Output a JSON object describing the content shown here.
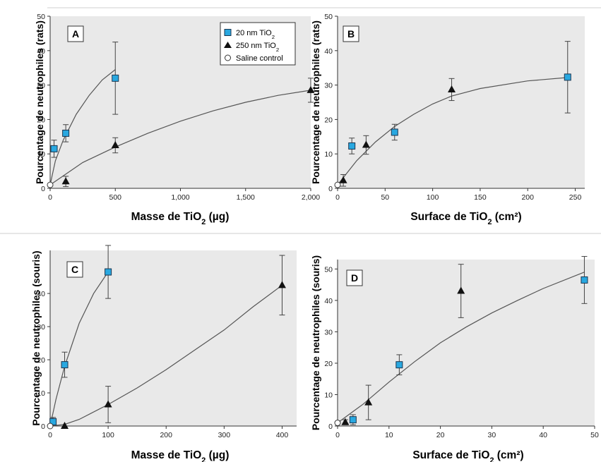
{
  "legend": {
    "items": [
      {
        "name": "20 nm TiO₂",
        "marker": "square",
        "color": "#29a8e0"
      },
      {
        "name": "250 nm TiO₂",
        "marker": "triangle",
        "color": "#111111"
      },
      {
        "name": "Saline control",
        "marker": "circle",
        "color": "#ffffff"
      }
    ]
  },
  "chart_data": [
    {
      "panel": "A",
      "type": "scatter",
      "xlabel": "Masse de TiO₂ (µg)",
      "ylabel": "Pourcentage de neutrophiles (rats)",
      "xlim": [
        0,
        2000
      ],
      "ylim": [
        0,
        50
      ],
      "xticks": [
        0,
        500,
        1000,
        1500,
        2000
      ],
      "xtick_labels": [
        "0",
        "500",
        "1,000",
        "1,500",
        "2,000"
      ],
      "yticks": [
        0,
        10,
        20,
        30,
        40,
        50
      ],
      "grid": false,
      "background": "#e9e9e9",
      "series": [
        {
          "name": "20 nm TiO₂",
          "marker": "square",
          "points": [
            {
              "x": 30,
              "y": 11.5,
              "err": 2.5
            },
            {
              "x": 120,
              "y": 16,
              "err": 2.5
            },
            {
              "x": 500,
              "y": 32,
              "err": 10.5
            }
          ],
          "fit": [
            [
              0,
              1
            ],
            [
              40,
              8
            ],
            [
              100,
              14
            ],
            [
              200,
              21.5
            ],
            [
              300,
              27
            ],
            [
              400,
              31.5
            ],
            [
              500,
              34.5
            ]
          ]
        },
        {
          "name": "250 nm TiO₂",
          "marker": "triangle",
          "points": [
            {
              "x": 120,
              "y": 2,
              "err": 1.5
            },
            {
              "x": 500,
              "y": 12.5,
              "err": 2.2
            },
            {
              "x": 2000,
              "y": 28.5,
              "err": 3.5
            }
          ],
          "fit": [
            [
              0,
              1
            ],
            [
              250,
              7.5
            ],
            [
              500,
              12
            ],
            [
              750,
              16
            ],
            [
              1000,
              19.5
            ],
            [
              1250,
              22.5
            ],
            [
              1500,
              25
            ],
            [
              1750,
              27
            ],
            [
              2000,
              28.5
            ]
          ]
        },
        {
          "name": "Saline control",
          "marker": "circle",
          "points": [
            {
              "x": 0,
              "y": 1
            }
          ]
        }
      ]
    },
    {
      "panel": "B",
      "type": "scatter",
      "xlabel": "Surface de TiO₂ (cm²)",
      "ylabel": "Pourcentage de neutrophiles (rats)",
      "xlim": [
        0,
        260
      ],
      "ylim": [
        0,
        50
      ],
      "xticks": [
        0,
        50,
        100,
        150,
        200,
        250
      ],
      "xtick_labels": [
        "0",
        "50",
        "100",
        "150",
        "200",
        "250"
      ],
      "yticks": [
        0,
        10,
        20,
        30,
        40,
        50
      ],
      "grid": false,
      "background": "#e9e9e9",
      "series": [
        {
          "name": "20 nm TiO₂",
          "marker": "square",
          "points": [
            {
              "x": 15,
              "y": 12.3,
              "err": 2.3
            },
            {
              "x": 60,
              "y": 16.3,
              "err": 2.3
            },
            {
              "x": 242,
              "y": 32.3,
              "err": 10.4
            }
          ]
        },
        {
          "name": "250 nm TiO₂",
          "marker": "triangle",
          "points": [
            {
              "x": 6,
              "y": 2.3,
              "err": 1.7
            },
            {
              "x": 30,
              "y": 12.6,
              "err": 2.7
            },
            {
              "x": 120,
              "y": 28.7,
              "err": 3.2
            }
          ]
        },
        {
          "name": "Saline control",
          "marker": "circle",
          "points": [
            {
              "x": 0,
              "y": 1
            }
          ]
        },
        {
          "name": "",
          "marker": "none",
          "fit": [
            [
              0,
              1
            ],
            [
              20,
              8
            ],
            [
              40,
              13.5
            ],
            [
              60,
              18
            ],
            [
              80,
              21.5
            ],
            [
              100,
              24.5
            ],
            [
              120,
              26.8
            ],
            [
              150,
              29
            ],
            [
              200,
              31.2
            ],
            [
              242,
              32.2
            ]
          ]
        }
      ]
    },
    {
      "panel": "C",
      "type": "scatter",
      "xlabel": "Masse de TiO₂ (µg)",
      "ylabel": "Pourcentage de neutrophiles (souris)",
      "xlim": [
        0,
        425
      ],
      "ylim": [
        0,
        53
      ],
      "xticks": [
        0,
        100,
        200,
        300,
        400
      ],
      "xtick_labels": [
        "0",
        "100",
        "200",
        "300",
        "400"
      ],
      "yticks": [
        0,
        10,
        20,
        30,
        40
      ],
      "grid": false,
      "background": "#e9e9e9",
      "series": [
        {
          "name": "20 nm TiO₂",
          "marker": "square",
          "points": [
            {
              "x": 5,
              "y": 1.3,
              "err": 1.3
            },
            {
              "x": 25,
              "y": 18.5,
              "err": 3.8
            },
            {
              "x": 100,
              "y": 46.5,
              "err": 8
            }
          ],
          "fit": [
            [
              0,
              0
            ],
            [
              10,
              8
            ],
            [
              25,
              18
            ],
            [
              50,
              31
            ],
            [
              75,
              40
            ],
            [
              100,
              46.5
            ]
          ]
        },
        {
          "name": "250 nm TiO₂",
          "marker": "triangle",
          "points": [
            {
              "x": 25,
              "y": 0,
              "err": 0
            },
            {
              "x": 100,
              "y": 6.5,
              "err": 5.5
            },
            {
              "x": 400,
              "y": 42.5,
              "err": 9
            }
          ],
          "fit": [
            [
              0,
              0
            ],
            [
              25,
              0.5
            ],
            [
              50,
              2
            ],
            [
              100,
              6.5
            ],
            [
              150,
              11.5
            ],
            [
              200,
              17
            ],
            [
              250,
              23
            ],
            [
              300,
              29
            ],
            [
              350,
              36
            ],
            [
              400,
              42.5
            ]
          ]
        },
        {
          "name": "Saline control",
          "marker": "circle",
          "points": [
            {
              "x": 0,
              "y": 0
            }
          ]
        }
      ]
    },
    {
      "panel": "D",
      "type": "scatter",
      "xlabel": "Surface de TiO₂ (cm²)",
      "ylabel": "Pourcentage de neutrophiles (souris)",
      "xlim": [
        0,
        50
      ],
      "ylim": [
        0,
        53
      ],
      "xticks": [
        0,
        10,
        20,
        30,
        40,
        50
      ],
      "xtick_labels": [
        "0",
        "10",
        "20",
        "30",
        "40",
        "50"
      ],
      "yticks": [
        0,
        10,
        20,
        30,
        40,
        50
      ],
      "grid": false,
      "background": "#e9e9e9",
      "series": [
        {
          "name": "20 nm TiO₂",
          "marker": "square",
          "points": [
            {
              "x": 3,
              "y": 2,
              "err": 1.6
            },
            {
              "x": 12,
              "y": 19.5,
              "err": 3.2
            },
            {
              "x": 48,
              "y": 46.5,
              "err": 7.5
            }
          ]
        },
        {
          "name": "250 nm TiO₂",
          "marker": "triangle",
          "points": [
            {
              "x": 1.5,
              "y": 1.2,
              "err": 0.8
            },
            {
              "x": 6,
              "y": 7.5,
              "err": 5.5
            },
            {
              "x": 24,
              "y": 43,
              "err": 8.5
            }
          ]
        },
        {
          "name": "Saline control",
          "marker": "circle",
          "points": [
            {
              "x": 0,
              "y": 1
            }
          ]
        },
        {
          "name": "",
          "marker": "none",
          "fit": [
            [
              0,
              1
            ],
            [
              5,
              7
            ],
            [
              10,
              14
            ],
            [
              15,
              20.5
            ],
            [
              20,
              26.5
            ],
            [
              25,
              31.5
            ],
            [
              30,
              36
            ],
            [
              35,
              40
            ],
            [
              40,
              43.8
            ],
            [
              48,
              49
            ]
          ]
        }
      ]
    }
  ]
}
